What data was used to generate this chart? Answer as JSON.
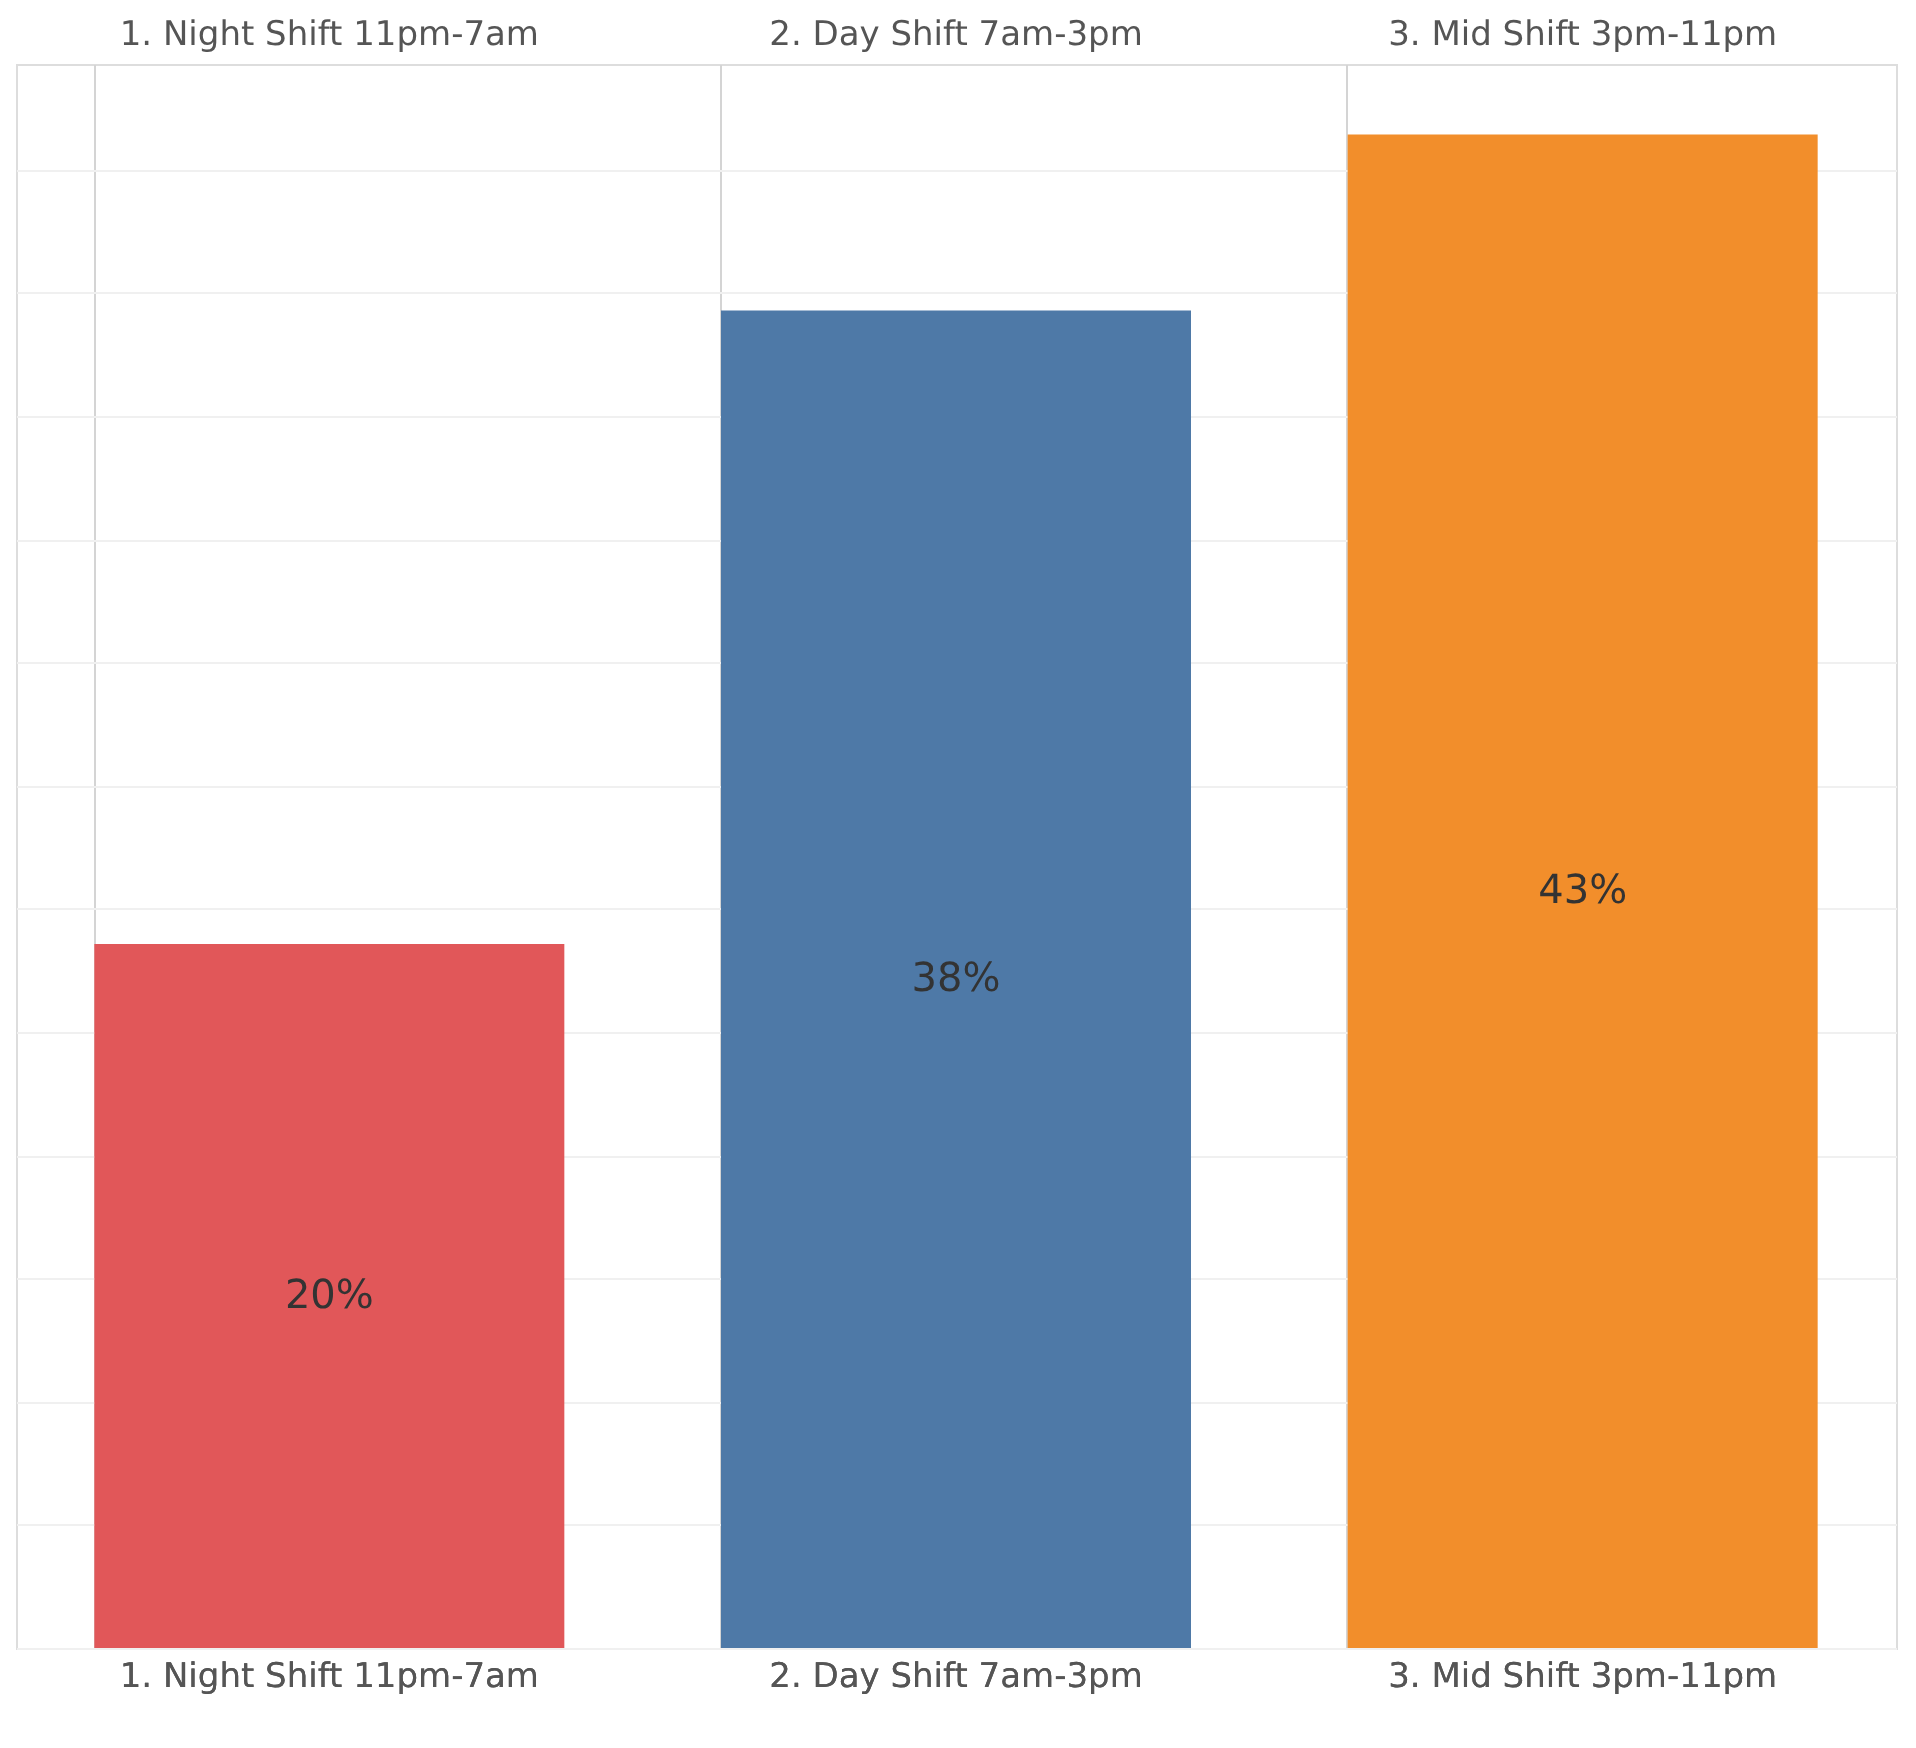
{
  "chart_data": {
    "type": "bar",
    "categories": [
      "1. Night Shift 11pm-7am",
      "2. Day Shift 7am-3pm",
      "3. Mid Shift 3pm-11pm"
    ],
    "values": [
      20,
      38,
      43
    ],
    "colors": [
      "#e15759",
      "#4e79a7",
      "#f28e2b"
    ],
    "value_labels": [
      "20%",
      "38%",
      "43%"
    ],
    "ylim": [
      0,
      45
    ],
    "yticks": [
      {
        "value": 0,
        "label": null
      },
      {
        "value": 3.5,
        "label": null
      },
      {
        "value": 7,
        "label": null
      },
      {
        "value": 10.5,
        "label": null
      },
      {
        "value": 14,
        "label": null
      },
      {
        "value": 17.5,
        "label": null
      },
      {
        "value": 21,
        "label": null
      },
      {
        "value": 24.5,
        "label": null
      },
      {
        "value": 28,
        "label": null
      },
      {
        "value": 31.5,
        "label": null
      },
      {
        "value": 35,
        "label": null
      },
      {
        "value": 38.5,
        "label": null
      },
      {
        "value": 42,
        "label": null
      }
    ],
    "tick_labels": "x",
    "grid": true
  }
}
